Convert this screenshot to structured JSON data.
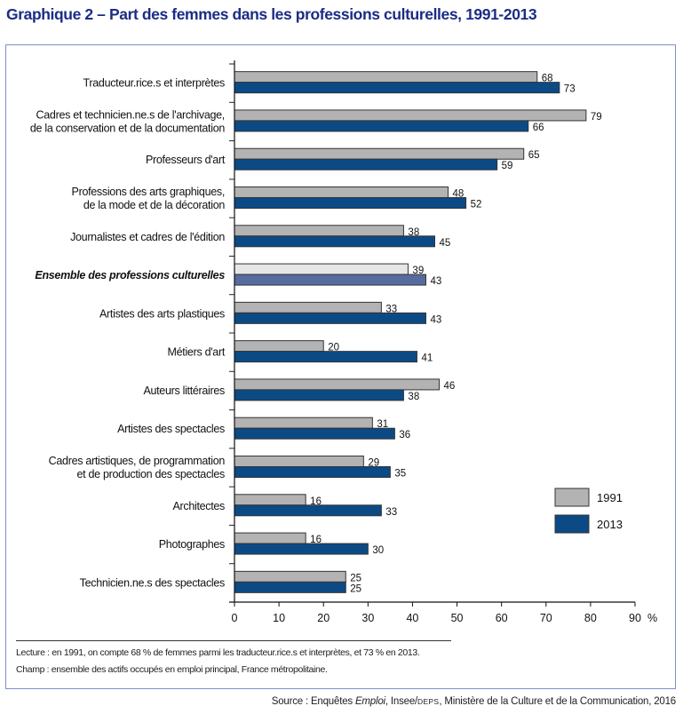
{
  "title": "Graphique 2 – Part des femmes dans les professions culturelles, 1991-2013",
  "chart_data": {
    "type": "bar",
    "orientation": "horizontal",
    "title": "Graphique 2 – Part des femmes dans les professions culturelles, 1991-2013",
    "xlabel": "%",
    "ylabel": "",
    "xlim": [
      0,
      90
    ],
    "xticks": [
      0,
      10,
      20,
      30,
      40,
      50,
      60,
      70,
      80,
      90
    ],
    "xtick_labels": [
      "0",
      "10",
      "20",
      "30",
      "40",
      "50",
      "60",
      "70",
      "80",
      "90"
    ],
    "unit_label": "%",
    "grid": false,
    "legend_position": "bottom-right",
    "categories": [
      [
        "Traducteur.rice.s et interprètes"
      ],
      [
        "Cadres et technicien.ne.s de l'archivage,",
        "de la conservation et de la documentation"
      ],
      [
        "Professeurs d'art"
      ],
      [
        "Professions des arts graphiques,",
        "de la mode et de la décoration"
      ],
      [
        "Journalistes et cadres de l'édition"
      ],
      [
        "Ensemble des professions culturelles"
      ],
      [
        "Artistes des arts plastiques"
      ],
      [
        "Métiers d'art"
      ],
      [
        "Auteurs littéraires"
      ],
      [
        "Artistes des spectacles"
      ],
      [
        "Cadres artistiques, de programmation",
        "et de production des spectacles"
      ],
      [
        "Architectes"
      ],
      [
        "Photographes"
      ],
      [
        "Technicien.ne.s des spectacles"
      ]
    ],
    "highlighted_category_index": 5,
    "series": [
      {
        "name": "1991",
        "color": "#b3b3b3",
        "highlight_color": "#e6e6e6",
        "values": [
          68,
          79,
          65,
          48,
          38,
          39,
          33,
          20,
          46,
          31,
          29,
          16,
          16,
          25
        ]
      },
      {
        "name": "2013",
        "color": "#0c4a86",
        "highlight_color": "#566c9f",
        "values": [
          73,
          66,
          59,
          52,
          45,
          43,
          43,
          41,
          38,
          36,
          35,
          33,
          30,
          25
        ]
      }
    ]
  },
  "notes": {
    "lecture": "Lecture : en 1991, on compte 68 % de femmes parmi les traducteur.rice.s et interprètes, et 73 % en 2013.",
    "champ": "Champ : ensemble des actifs occupés en emploi principal, France métropolitaine."
  },
  "source": {
    "prefix": "Source : Enquêtes ",
    "emploi": "Emploi",
    "mid": ", Insee/",
    "deps": "DEPS",
    "suffix": ", Ministère de la Culture et de la Communication, 2016"
  }
}
